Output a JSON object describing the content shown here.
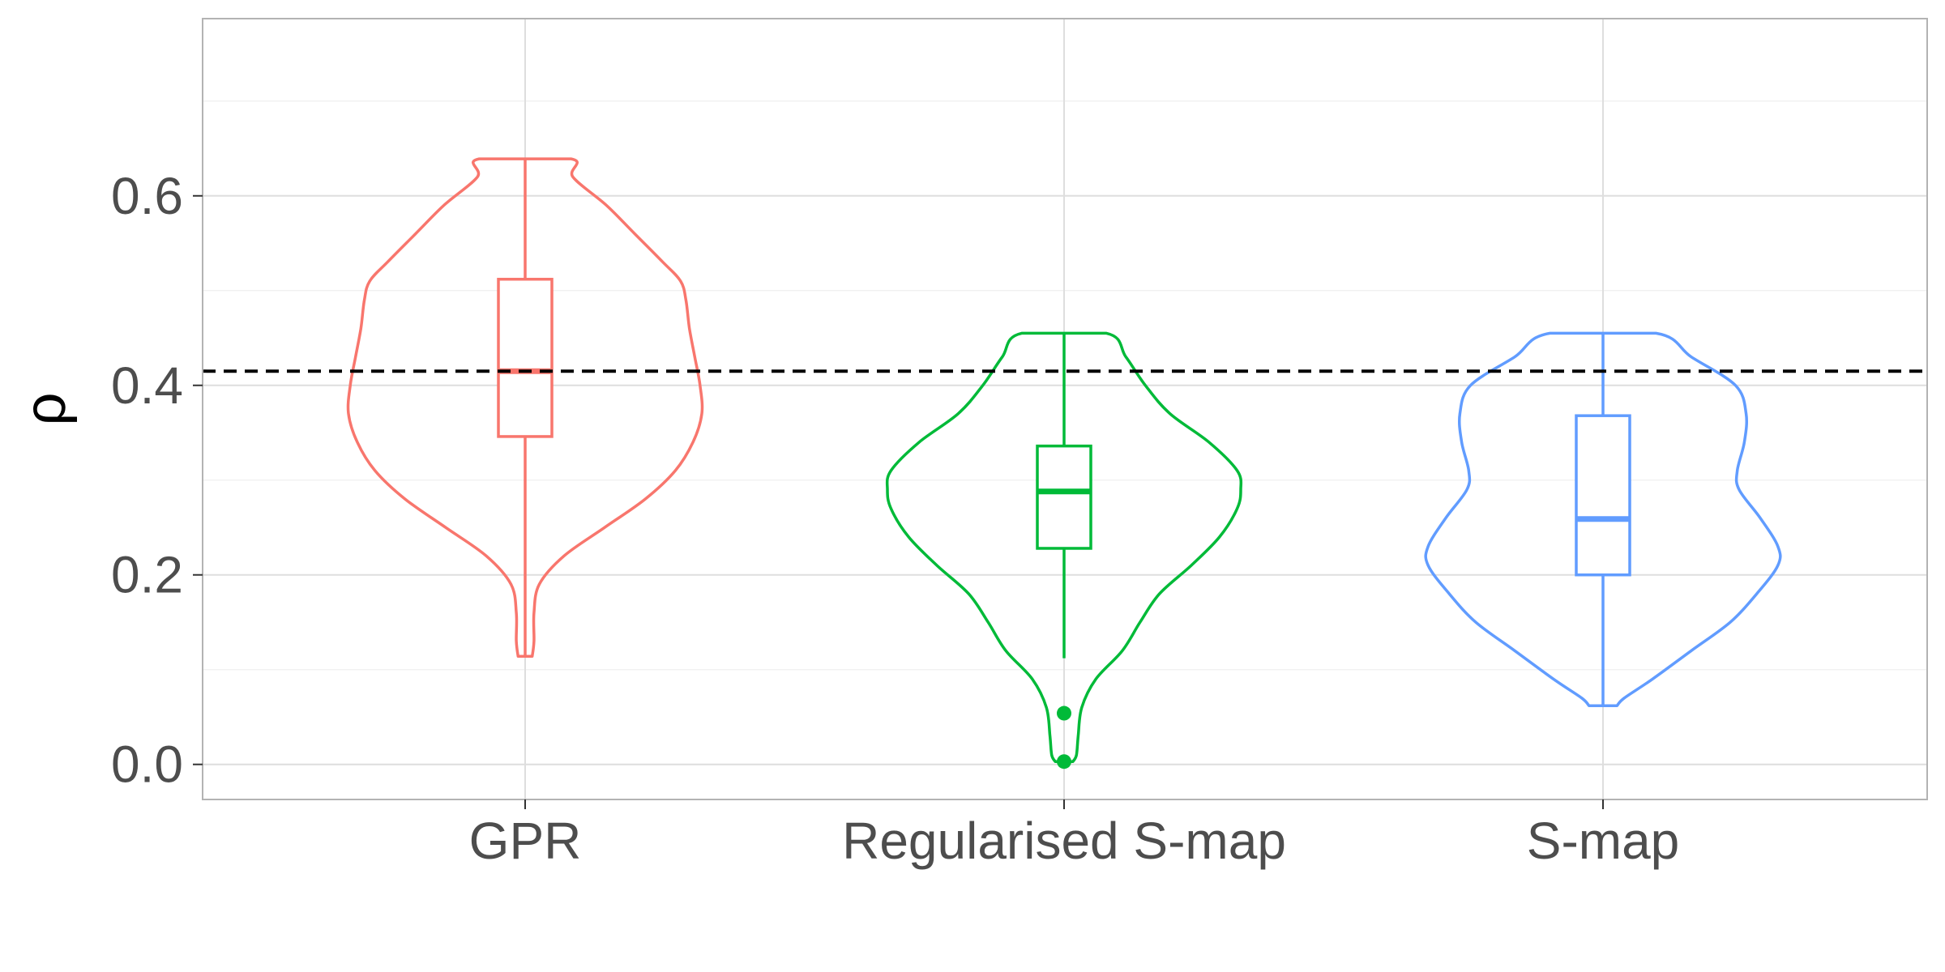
{
  "chart_data": {
    "type": "violin",
    "ylabel": "ρ",
    "xlabel": "",
    "ylim": [
      -0.037,
      0.787
    ],
    "yticks": [
      0.0,
      0.2,
      0.4,
      0.6
    ],
    "ytick_labels": [
      "0.0",
      "0.2",
      "0.4",
      "0.6"
    ],
    "grid": true,
    "reference_line": {
      "y": 0.415,
      "style": "dashed",
      "color": "#000000"
    },
    "categories": [
      "GPR",
      "Regularised S-map",
      "S-map"
    ],
    "series": [
      {
        "category": "GPR",
        "color": "#F8766D",
        "min": 0.114,
        "q1": 0.346,
        "median": 0.415,
        "q3": 0.512,
        "max": 0.639,
        "outliers": [],
        "density": [
          [
            0.114,
            0.04
          ],
          [
            0.13,
            0.05
          ],
          [
            0.16,
            0.05
          ],
          [
            0.19,
            0.08
          ],
          [
            0.22,
            0.22
          ],
          [
            0.25,
            0.45
          ],
          [
            0.28,
            0.68
          ],
          [
            0.31,
            0.85
          ],
          [
            0.34,
            0.95
          ],
          [
            0.37,
            1.0
          ],
          [
            0.4,
            0.99
          ],
          [
            0.43,
            0.96
          ],
          [
            0.46,
            0.93
          ],
          [
            0.49,
            0.91
          ],
          [
            0.51,
            0.88
          ],
          [
            0.53,
            0.78
          ],
          [
            0.56,
            0.62
          ],
          [
            0.59,
            0.46
          ],
          [
            0.62,
            0.27
          ],
          [
            0.639,
            0.26
          ]
        ]
      },
      {
        "category": "Regularised S-map",
        "color": "#00BA38",
        "min": 0.112,
        "q1": 0.228,
        "median": 0.288,
        "q3": 0.336,
        "max": 0.455,
        "outliers": [
          0.054,
          0.003
        ],
        "density": [
          [
            0.003,
            0.05
          ],
          [
            0.01,
            0.07
          ],
          [
            0.03,
            0.08
          ],
          [
            0.06,
            0.1
          ],
          [
            0.09,
            0.18
          ],
          [
            0.12,
            0.33
          ],
          [
            0.15,
            0.43
          ],
          [
            0.18,
            0.54
          ],
          [
            0.21,
            0.72
          ],
          [
            0.24,
            0.88
          ],
          [
            0.27,
            0.98
          ],
          [
            0.29,
            1.0
          ],
          [
            0.31,
            0.98
          ],
          [
            0.34,
            0.82
          ],
          [
            0.37,
            0.6
          ],
          [
            0.4,
            0.46
          ],
          [
            0.43,
            0.35
          ],
          [
            0.455,
            0.24
          ]
        ]
      },
      {
        "category": "S-map",
        "color": "#619CFF",
        "min": 0.062,
        "q1": 0.2,
        "median": 0.259,
        "q3": 0.368,
        "max": 0.455,
        "outliers": [],
        "density": [
          [
            0.062,
            0.08
          ],
          [
            0.07,
            0.12
          ],
          [
            0.09,
            0.28
          ],
          [
            0.12,
            0.5
          ],
          [
            0.15,
            0.72
          ],
          [
            0.18,
            0.87
          ],
          [
            0.21,
            0.99
          ],
          [
            0.23,
            0.99
          ],
          [
            0.26,
            0.89
          ],
          [
            0.29,
            0.77
          ],
          [
            0.31,
            0.76
          ],
          [
            0.34,
            0.8
          ],
          [
            0.37,
            0.81
          ],
          [
            0.4,
            0.75
          ],
          [
            0.43,
            0.5
          ],
          [
            0.455,
            0.3
          ]
        ]
      }
    ]
  }
}
